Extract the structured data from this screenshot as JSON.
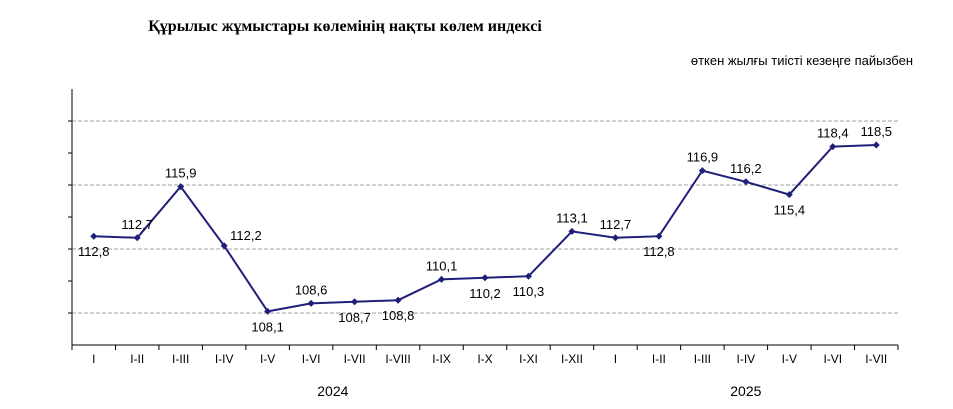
{
  "chart_data": {
    "type": "line",
    "title": "Құрылыс жұмыстары көлемінің нақты көлем индексі",
    "subtitle": "өткен жылғы тиісті кезеңге пайызбен",
    "categories": [
      "I",
      "I-II",
      "I-III",
      "I-IV",
      "I-V",
      "I-VI",
      "I-VII",
      "I-VIII",
      "I-IX",
      "I-X",
      "I-XI",
      "I-XII",
      "I",
      "I-II",
      "I-III",
      "I-IV",
      "I-V",
      "I-VI",
      "I-VII"
    ],
    "values": [
      112.8,
      112.7,
      115.9,
      112.2,
      108.1,
      108.6,
      108.7,
      108.8,
      110.1,
      110.2,
      110.3,
      113.1,
      112.7,
      112.8,
      116.9,
      116.2,
      115.4,
      118.4,
      118.5
    ],
    "value_labels": [
      "112,8",
      "112,7",
      "115,9",
      "112,2",
      "108,1",
      "108,6",
      "108,7",
      "108,8",
      "110,1",
      "110,2",
      "110,3",
      "113,1",
      "112,7",
      "112,8",
      "116,9",
      "116,2",
      "115,4",
      "118,4",
      "118,5"
    ],
    "label_position": [
      "below",
      "above",
      "above",
      "right",
      "below",
      "above",
      "below",
      "below",
      "above",
      "below",
      "below",
      "above",
      "above",
      "below",
      "above",
      "above",
      "below",
      "above",
      "above"
    ],
    "year_groups": [
      {
        "label": "2024",
        "from": 0,
        "to": 11
      },
      {
        "label": "2025",
        "from": 12,
        "to": 18
      }
    ],
    "ylim": [
      106,
      122
    ],
    "gridlines": [
      108,
      110,
      112,
      114,
      116,
      118,
      120
    ],
    "grid": true,
    "line_color": "#1f1f7a",
    "grid_color": "#a0a0a0"
  }
}
